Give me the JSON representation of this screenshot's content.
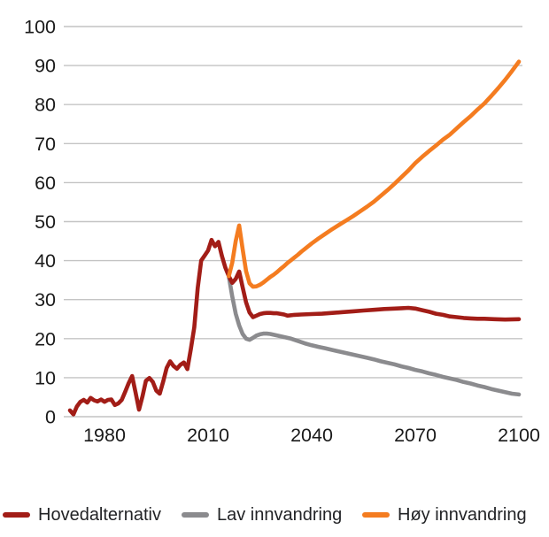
{
  "chart_data": {
    "type": "line",
    "title": "",
    "xlabel": "",
    "ylabel": "",
    "xlim": [
      1969,
      2101
    ],
    "ylim": [
      0,
      100
    ],
    "x_ticks": [
      1980,
      2010,
      2040,
      2070,
      2100
    ],
    "y_ticks": [
      0,
      10,
      20,
      30,
      40,
      50,
      60,
      70,
      80,
      90,
      100
    ],
    "grid": true,
    "legend_position": "bottom",
    "colors": {
      "grid": "#c4c4c4",
      "axis_text": "#1a1a1a",
      "background": "#ffffff"
    },
    "series": [
      {
        "name": "Lav innvandring",
        "color": "#8b8b8e",
        "points": [
          [
            2016,
            36.0
          ],
          [
            2017,
            30.8
          ],
          [
            2018,
            26.4
          ],
          [
            2019,
            23.4
          ],
          [
            2020,
            21.2
          ],
          [
            2021,
            20.0
          ],
          [
            2022,
            19.7
          ],
          [
            2023,
            20.2
          ],
          [
            2024,
            20.8
          ],
          [
            2025,
            21.1
          ],
          [
            2026,
            21.3
          ],
          [
            2027,
            21.3
          ],
          [
            2028,
            21.2
          ],
          [
            2029,
            21.0
          ],
          [
            2030,
            20.8
          ],
          [
            2032,
            20.4
          ],
          [
            2034,
            20.0
          ],
          [
            2036,
            19.4
          ],
          [
            2038,
            18.8
          ],
          [
            2040,
            18.3
          ],
          [
            2042,
            17.9
          ],
          [
            2044,
            17.5
          ],
          [
            2046,
            17.1
          ],
          [
            2048,
            16.7
          ],
          [
            2050,
            16.3
          ],
          [
            2052,
            15.9
          ],
          [
            2054,
            15.5
          ],
          [
            2056,
            15.1
          ],
          [
            2058,
            14.7
          ],
          [
            2060,
            14.2
          ],
          [
            2062,
            13.8
          ],
          [
            2064,
            13.4
          ],
          [
            2066,
            12.9
          ],
          [
            2068,
            12.5
          ],
          [
            2070,
            12.0
          ],
          [
            2072,
            11.6
          ],
          [
            2074,
            11.1
          ],
          [
            2076,
            10.7
          ],
          [
            2078,
            10.2
          ],
          [
            2080,
            9.8
          ],
          [
            2082,
            9.4
          ],
          [
            2084,
            8.9
          ],
          [
            2086,
            8.5
          ],
          [
            2088,
            8.0
          ],
          [
            2090,
            7.6
          ],
          [
            2092,
            7.1
          ],
          [
            2094,
            6.7
          ],
          [
            2096,
            6.3
          ],
          [
            2098,
            5.9
          ],
          [
            2100,
            5.7
          ]
        ]
      },
      {
        "name": "Hovedalternativ",
        "color": "#a21d17",
        "points": [
          [
            1970,
            1.6
          ],
          [
            1971,
            0.6
          ],
          [
            1972,
            2.6
          ],
          [
            1973,
            3.8
          ],
          [
            1974,
            4.3
          ],
          [
            1975,
            3.6
          ],
          [
            1976,
            4.8
          ],
          [
            1977,
            4.2
          ],
          [
            1978,
            3.9
          ],
          [
            1979,
            4.4
          ],
          [
            1980,
            3.8
          ],
          [
            1981,
            4.3
          ],
          [
            1982,
            4.4
          ],
          [
            1983,
            3.0
          ],
          [
            1984,
            3.4
          ],
          [
            1985,
            4.3
          ],
          [
            1986,
            6.4
          ],
          [
            1987,
            8.6
          ],
          [
            1988,
            10.4
          ],
          [
            1989,
            6.2
          ],
          [
            1990,
            1.8
          ],
          [
            1991,
            5.2
          ],
          [
            1992,
            9.2
          ],
          [
            1993,
            9.9
          ],
          [
            1994,
            8.9
          ],
          [
            1995,
            6.7
          ],
          [
            1996,
            5.9
          ],
          [
            1997,
            9.0
          ],
          [
            1998,
            12.5
          ],
          [
            1999,
            14.2
          ],
          [
            2000,
            13.0
          ],
          [
            2001,
            12.3
          ],
          [
            2002,
            13.3
          ],
          [
            2003,
            13.9
          ],
          [
            2004,
            12.2
          ],
          [
            2005,
            17.3
          ],
          [
            2006,
            22.9
          ],
          [
            2007,
            33.0
          ],
          [
            2008,
            40.0
          ],
          [
            2009,
            41.3
          ],
          [
            2010,
            42.6
          ],
          [
            2011,
            45.3
          ],
          [
            2012,
            43.7
          ],
          [
            2013,
            44.8
          ],
          [
            2014,
            41.2
          ],
          [
            2015,
            38.2
          ],
          [
            2016,
            36.0
          ],
          [
            2017,
            34.3
          ],
          [
            2018,
            35.3
          ],
          [
            2019,
            37.2
          ],
          [
            2020,
            33.2
          ],
          [
            2021,
            29.3
          ],
          [
            2022,
            26.7
          ],
          [
            2023,
            25.5
          ],
          [
            2024,
            25.9
          ],
          [
            2025,
            26.3
          ],
          [
            2026,
            26.5
          ],
          [
            2027,
            26.6
          ],
          [
            2028,
            26.6
          ],
          [
            2029,
            26.5
          ],
          [
            2030,
            26.5
          ],
          [
            2032,
            26.2
          ],
          [
            2033,
            25.9
          ],
          [
            2035,
            26.1
          ],
          [
            2037,
            26.2
          ],
          [
            2040,
            26.3
          ],
          [
            2043,
            26.4
          ],
          [
            2046,
            26.6
          ],
          [
            2049,
            26.8
          ],
          [
            2052,
            27.0
          ],
          [
            2055,
            27.2
          ],
          [
            2058,
            27.4
          ],
          [
            2061,
            27.6
          ],
          [
            2064,
            27.7
          ],
          [
            2066,
            27.8
          ],
          [
            2068,
            27.9
          ],
          [
            2070,
            27.7
          ],
          [
            2072,
            27.3
          ],
          [
            2074,
            26.9
          ],
          [
            2076,
            26.4
          ],
          [
            2078,
            26.1
          ],
          [
            2080,
            25.7
          ],
          [
            2082,
            25.5
          ],
          [
            2084,
            25.3
          ],
          [
            2086,
            25.2
          ],
          [
            2088,
            25.1
          ],
          [
            2090,
            25.1
          ],
          [
            2093,
            25.0
          ],
          [
            2096,
            24.9
          ],
          [
            2100,
            25.0
          ]
        ]
      },
      {
        "name": "Høy innvandring",
        "color": "#f47c20",
        "points": [
          [
            2016,
            36.0
          ],
          [
            2017,
            39.5
          ],
          [
            2018,
            45.0
          ],
          [
            2019,
            49.0
          ],
          [
            2020,
            43.0
          ],
          [
            2021,
            37.3
          ],
          [
            2022,
            34.2
          ],
          [
            2023,
            33.3
          ],
          [
            2024,
            33.4
          ],
          [
            2025,
            33.8
          ],
          [
            2026,
            34.4
          ],
          [
            2027,
            35.1
          ],
          [
            2028,
            35.8
          ],
          [
            2029,
            36.4
          ],
          [
            2030,
            37.1
          ],
          [
            2031,
            37.9
          ],
          [
            2032,
            38.6
          ],
          [
            2033,
            39.4
          ],
          [
            2034,
            40.1
          ],
          [
            2035,
            40.8
          ],
          [
            2036,
            41.5
          ],
          [
            2037,
            42.3
          ],
          [
            2038,
            43.0
          ],
          [
            2039,
            43.7
          ],
          [
            2040,
            44.4
          ],
          [
            2042,
            45.7
          ],
          [
            2044,
            46.9
          ],
          [
            2046,
            48.1
          ],
          [
            2048,
            49.2
          ],
          [
            2050,
            50.3
          ],
          [
            2052,
            51.4
          ],
          [
            2054,
            52.6
          ],
          [
            2056,
            53.8
          ],
          [
            2058,
            55.1
          ],
          [
            2060,
            56.6
          ],
          [
            2062,
            58.1
          ],
          [
            2064,
            59.7
          ],
          [
            2066,
            61.4
          ],
          [
            2068,
            63.1
          ],
          [
            2070,
            65.0
          ],
          [
            2072,
            66.6
          ],
          [
            2074,
            68.1
          ],
          [
            2076,
            69.5
          ],
          [
            2078,
            71.0
          ],
          [
            2080,
            72.3
          ],
          [
            2082,
            73.9
          ],
          [
            2084,
            75.5
          ],
          [
            2086,
            77.0
          ],
          [
            2088,
            78.7
          ],
          [
            2090,
            80.3
          ],
          [
            2092,
            82.2
          ],
          [
            2094,
            84.2
          ],
          [
            2096,
            86.3
          ],
          [
            2098,
            88.6
          ],
          [
            2100,
            91.0
          ]
        ]
      }
    ],
    "legend": [
      "Hovedalternativ",
      "Lav innvandring",
      "Høy innvandring"
    ]
  }
}
